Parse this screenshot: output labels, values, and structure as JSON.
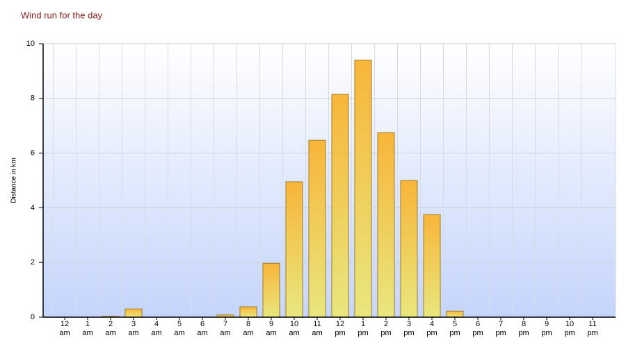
{
  "chart_data": {
    "type": "bar",
    "title": "Wind run for the day",
    "y_label": "Distance in km",
    "categories": [
      "12 am",
      "1 am",
      "2 am",
      "3 am",
      "4 am",
      "5 am",
      "6 am",
      "7 am",
      "8 am",
      "9 am",
      "10 am",
      "11 am",
      "12 pm",
      "1 pm",
      "2 pm",
      "3 pm",
      "4 pm",
      "5 pm",
      "6 pm",
      "7 pm",
      "8 pm",
      "9 pm",
      "10 pm",
      "11 pm"
    ],
    "values": [
      0,
      0,
      0.03,
      0.3,
      0,
      0,
      0,
      0.08,
      0.38,
      1.97,
      4.95,
      6.47,
      8.15,
      9.4,
      6.75,
      5.0,
      3.75,
      0.22,
      0,
      0,
      0,
      0,
      0,
      0
    ],
    "color": "#f5b53a",
    "ylim": [
      0,
      10
    ],
    "yticks": [
      0,
      2,
      4,
      6,
      8,
      10
    ],
    "grid": true
  }
}
